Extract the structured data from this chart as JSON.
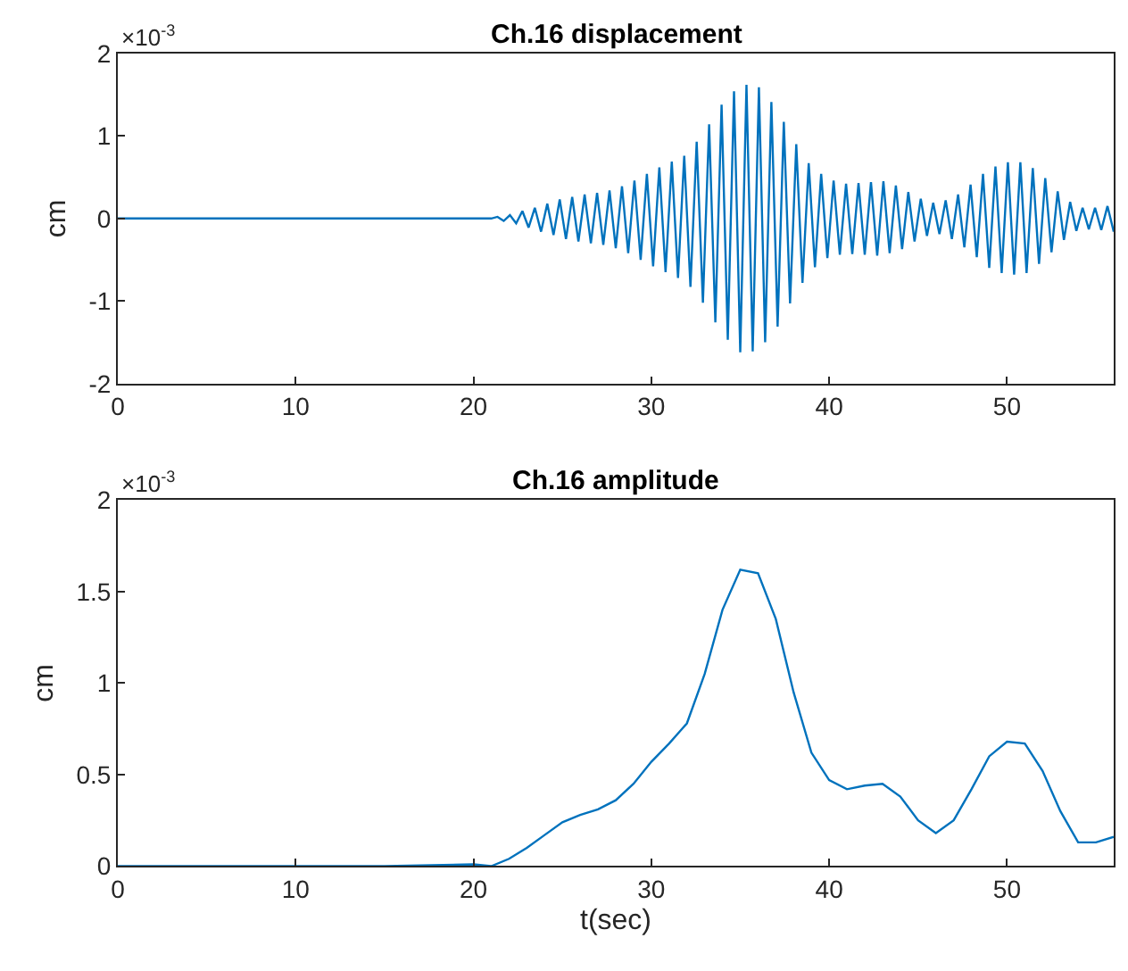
{
  "chart_data": [
    {
      "type": "line",
      "title": "Ch.16 displacement",
      "ylabel": "cm",
      "annotations": [
        "×10$^{-3}$"
      ],
      "color": "#0072bd",
      "grid": false,
      "marker": "none",
      "line_style": "solid",
      "x": [
        0,
        21,
        21.35,
        21.7,
        22.05,
        22.4,
        22.75,
        23.1,
        23.45,
        23.8,
        24.15,
        24.5,
        24.85,
        25.2,
        25.55,
        25.9,
        26.25,
        26.6,
        26.95,
        27.3,
        27.65,
        28.0,
        28.35,
        28.7,
        29.05,
        29.4,
        29.75,
        30.1,
        30.45,
        30.8,
        31.15,
        31.5,
        31.85,
        32.2,
        32.55,
        32.9,
        33.25,
        33.6,
        33.95,
        34.3,
        34.65,
        35.0,
        35.35,
        35.7,
        36.05,
        36.4,
        36.75,
        37.1,
        37.45,
        37.8,
        38.15,
        38.5,
        38.85,
        39.2,
        39.55,
        39.9,
        40.25,
        40.6,
        40.95,
        41.3,
        41.65,
        42.0,
        42.35,
        42.7,
        43.05,
        43.4,
        43.75,
        44.1,
        44.45,
        44.8,
        45.15,
        45.5,
        45.85,
        46.2,
        46.55,
        46.9,
        47.25,
        47.6,
        47.95,
        48.3,
        48.65,
        49.0,
        49.35,
        49.7,
        50.05,
        50.4,
        50.75,
        51.1,
        51.45,
        51.8,
        52.15,
        52.5,
        52.85,
        53.2,
        53.55,
        53.9,
        54.25,
        54.6,
        54.95,
        55.3,
        55.65,
        56.0
      ],
      "values": [
        0,
        0,
        0.02,
        -0.03,
        0.04,
        -0.06,
        0.09,
        -0.11,
        0.13,
        -0.16,
        0.18,
        -0.2,
        0.23,
        -0.25,
        0.26,
        -0.28,
        0.29,
        -0.3,
        0.31,
        -0.32,
        0.34,
        -0.36,
        0.39,
        -0.42,
        0.46,
        -0.5,
        0.54,
        -0.58,
        0.62,
        -0.65,
        0.69,
        -0.72,
        0.76,
        -0.83,
        0.93,
        -1.02,
        1.14,
        -1.26,
        1.38,
        -1.47,
        1.54,
        -1.62,
        1.62,
        -1.61,
        1.59,
        -1.5,
        1.41,
        -1.31,
        1.17,
        -1.03,
        0.9,
        -0.78,
        0.67,
        -0.59,
        0.54,
        -0.48,
        0.46,
        -0.44,
        0.42,
        -0.43,
        0.43,
        -0.44,
        0.44,
        -0.45,
        0.45,
        -0.42,
        0.4,
        -0.37,
        0.32,
        -0.28,
        0.24,
        -0.21,
        0.19,
        -0.19,
        0.22,
        -0.25,
        0.29,
        -0.35,
        0.41,
        -0.47,
        0.54,
        -0.6,
        0.63,
        -0.66,
        0.68,
        -0.68,
        0.68,
        -0.66,
        0.61,
        -0.55,
        0.49,
        -0.41,
        0.33,
        -0.26,
        0.2,
        -0.15,
        0.13,
        -0.13,
        0.13,
        -0.14,
        0.15,
        -0.16
      ],
      "xlim": [
        0,
        56
      ],
      "xticks": [
        0,
        10,
        20,
        30,
        40,
        50
      ],
      "ylim": [
        -2,
        2
      ],
      "yticks": [
        -2,
        -1,
        0,
        1,
        2
      ]
    },
    {
      "type": "line",
      "title": "Ch.16 amplitude",
      "xlabel": "t(sec)",
      "ylabel": "cm",
      "annotations": [
        "×10$^{-3}$"
      ],
      "color": "#0072bd",
      "grid": false,
      "marker": "none",
      "line_style": "solid",
      "x": [
        0,
        5,
        10,
        15,
        20,
        21,
        22,
        23,
        24,
        25,
        26,
        27,
        28,
        29,
        30,
        31,
        32,
        33,
        34,
        35,
        36,
        37,
        38,
        39,
        40,
        41,
        42,
        43,
        44,
        45,
        46,
        47,
        48,
        49,
        50,
        51,
        52,
        53,
        54,
        55,
        56
      ],
      "values": [
        0,
        0,
        0,
        0,
        0.01,
        0.0,
        0.04,
        0.1,
        0.17,
        0.24,
        0.28,
        0.31,
        0.36,
        0.45,
        0.57,
        0.67,
        0.78,
        1.05,
        1.4,
        1.62,
        1.6,
        1.35,
        0.95,
        0.62,
        0.47,
        0.42,
        0.44,
        0.45,
        0.38,
        0.25,
        0.18,
        0.25,
        0.42,
        0.6,
        0.68,
        0.67,
        0.52,
        0.3,
        0.13,
        0.13,
        0.16
      ],
      "xlim": [
        0,
        56
      ],
      "xticks": [
        0,
        10,
        20,
        30,
        40,
        50
      ],
      "ylim": [
        0,
        2
      ],
      "yticks": [
        0,
        0.5,
        1,
        1.5,
        2
      ]
    }
  ]
}
